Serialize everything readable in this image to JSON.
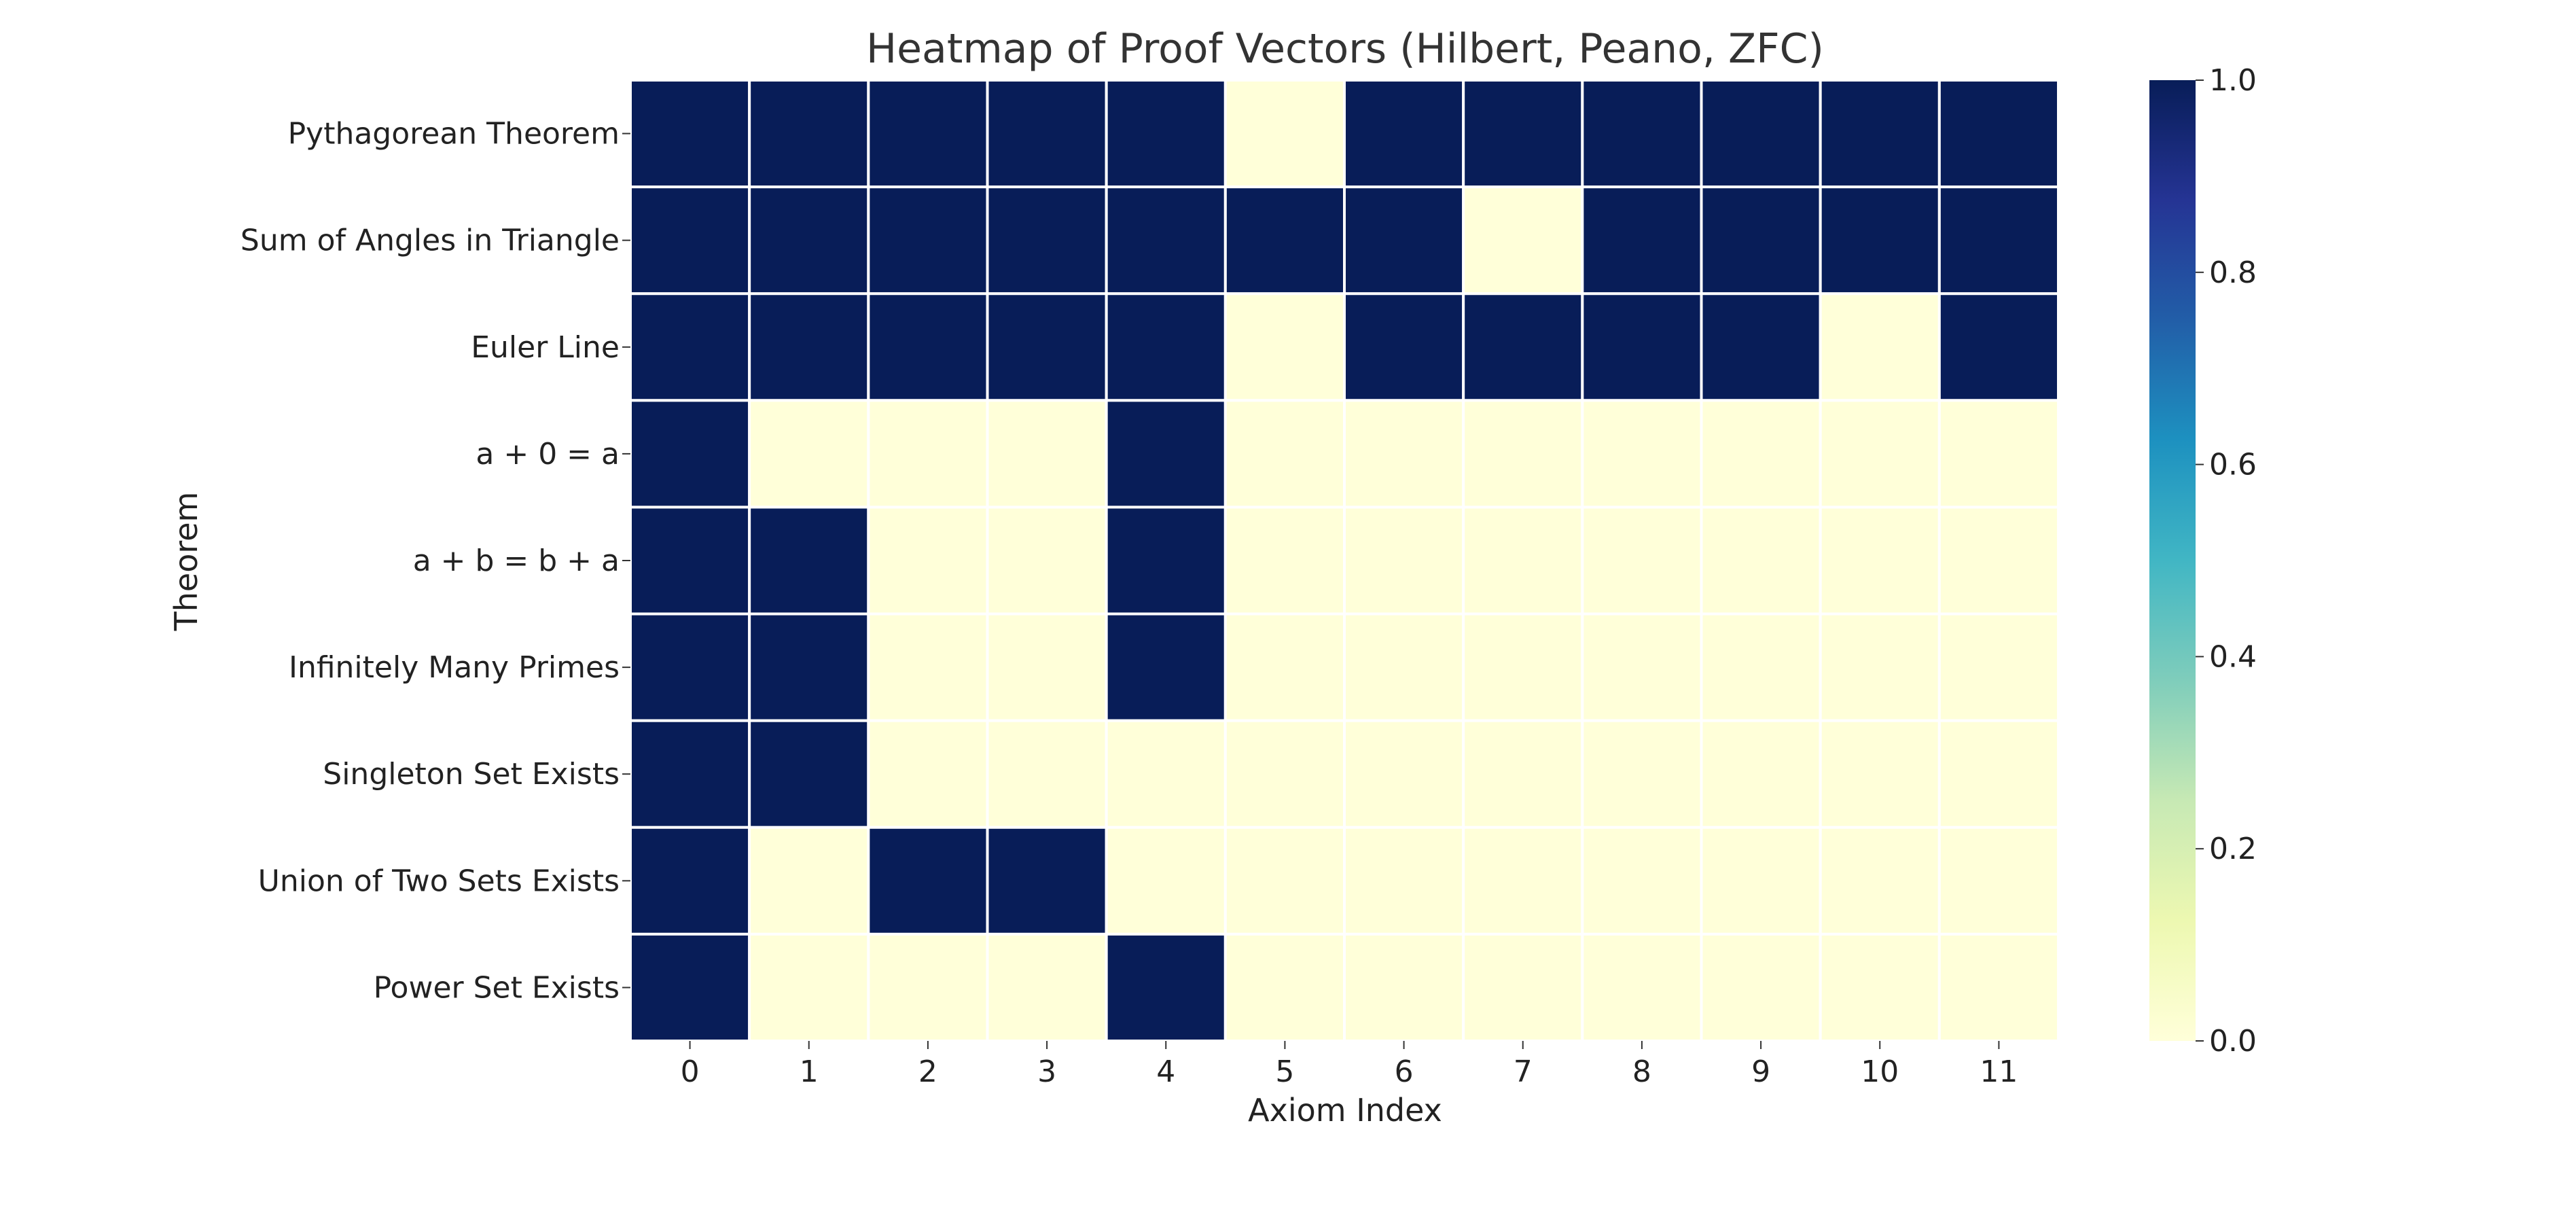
{
  "chart_data": {
    "type": "heatmap",
    "title": "Heatmap of Proof Vectors (Hilbert, Peano, ZFC)",
    "xlabel": "Axiom Index",
    "ylabel": "Theorem",
    "x_categories": [
      "0",
      "1",
      "2",
      "3",
      "4",
      "5",
      "6",
      "7",
      "8",
      "9",
      "10",
      "11"
    ],
    "y_categories": [
      "Pythagorean Theorem",
      "Sum of Angles in Triangle",
      "Euler Line",
      "a + 0 = a",
      "a + b = b + a",
      "Infinitely Many Primes",
      "Singleton Set Exists",
      "Union of Two Sets Exists",
      "Power Set Exists"
    ],
    "values": [
      [
        1,
        1,
        1,
        1,
        1,
        0,
        1,
        1,
        1,
        1,
        1,
        1
      ],
      [
        1,
        1,
        1,
        1,
        1,
        1,
        1,
        0,
        1,
        1,
        1,
        1
      ],
      [
        1,
        1,
        1,
        1,
        1,
        0,
        1,
        1,
        1,
        1,
        0,
        1
      ],
      [
        1,
        0,
        0,
        0,
        1,
        0,
        0,
        0,
        0,
        0,
        0,
        0
      ],
      [
        1,
        1,
        0,
        0,
        1,
        0,
        0,
        0,
        0,
        0,
        0,
        0
      ],
      [
        1,
        1,
        0,
        0,
        1,
        0,
        0,
        0,
        0,
        0,
        0,
        0
      ],
      [
        1,
        1,
        0,
        0,
        0,
        0,
        0,
        0,
        0,
        0,
        0,
        0
      ],
      [
        1,
        0,
        1,
        1,
        0,
        0,
        0,
        0,
        0,
        0,
        0,
        0
      ],
      [
        1,
        0,
        0,
        0,
        1,
        0,
        0,
        0,
        0,
        0,
        0,
        0
      ]
    ],
    "colormap": "YlGnBu",
    "color_range": [
      0.0,
      1.0
    ],
    "colorbar_ticks": [
      "0.0",
      "0.2",
      "0.4",
      "0.6",
      "0.8",
      "1.0"
    ],
    "colorbar_tick_values": [
      0.0,
      0.2,
      0.4,
      0.6,
      0.8,
      1.0
    ],
    "grid_line_color": "#ffffff",
    "colors": {
      "high": "#081d58",
      "low": "#ffffd9"
    }
  }
}
